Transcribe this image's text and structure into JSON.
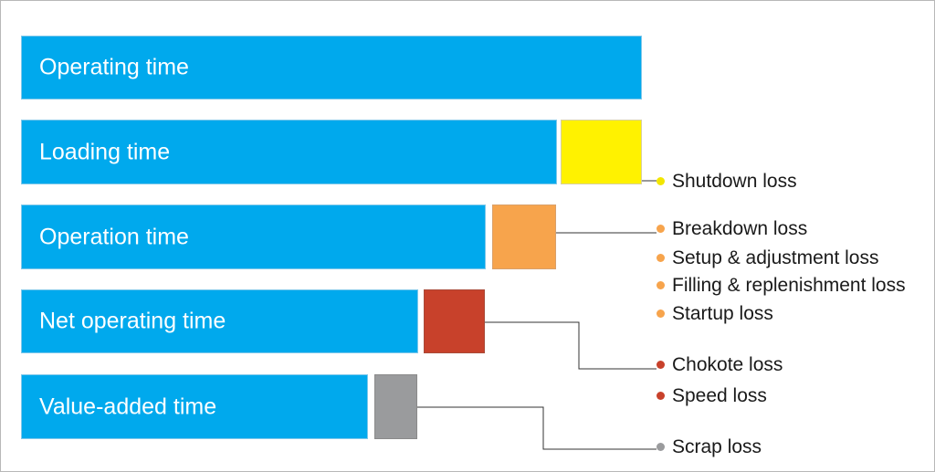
{
  "bars": [
    {
      "label": "Operating time"
    },
    {
      "label": "Loading time"
    },
    {
      "label": "Operation time"
    },
    {
      "label": "Net operating time"
    },
    {
      "label": "Value-added time"
    }
  ],
  "loss_boxes": [
    {
      "color": "#fff200"
    },
    {
      "color": "#f7a44c"
    },
    {
      "color": "#c8412b"
    },
    {
      "color": "#9a9b9d"
    }
  ],
  "losses": [
    {
      "label": "Shutdown loss",
      "color": "#f2e600"
    },
    {
      "label": "Breakdown loss",
      "color": "#f7a44c"
    },
    {
      "label": "Setup & adjustment loss",
      "color": "#f7a44c"
    },
    {
      "label": "Filling & replenishment loss",
      "color": "#f7a44c"
    },
    {
      "label": "Startup loss",
      "color": "#f7a44c"
    },
    {
      "label": "Chokote loss",
      "color": "#c8412b"
    },
    {
      "label": "Speed loss",
      "color": "#c8412b"
    },
    {
      "label": "Scrap loss",
      "color": "#9a9b9d"
    }
  ]
}
